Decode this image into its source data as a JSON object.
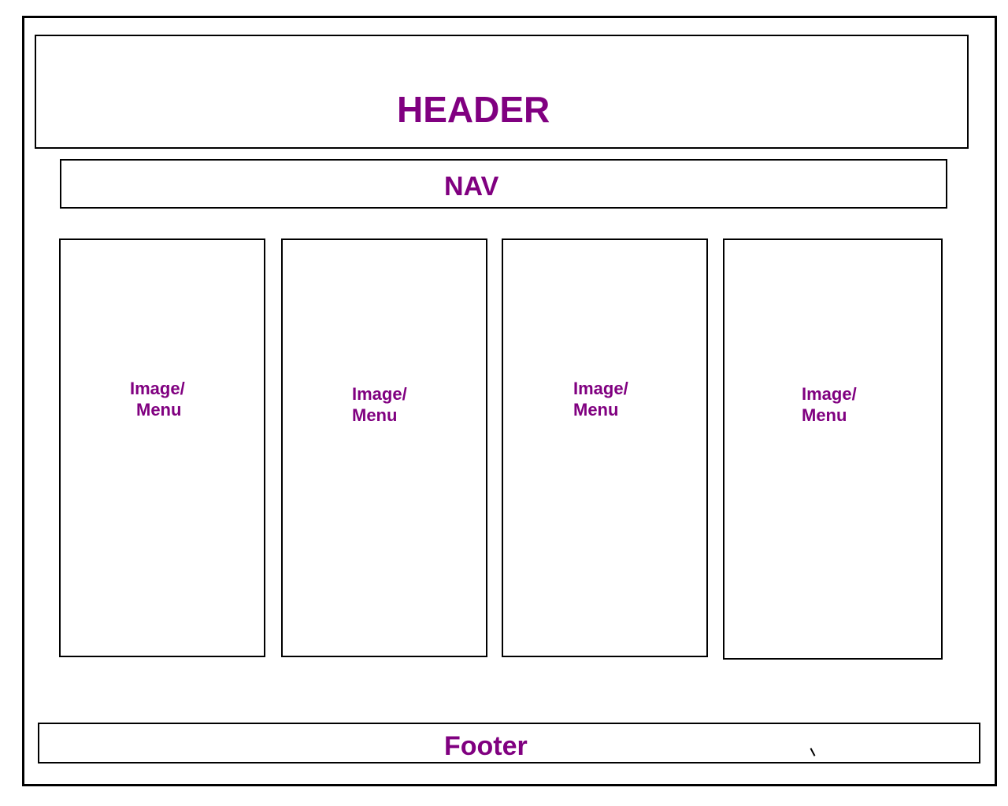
{
  "header": {
    "label": "HEADER"
  },
  "nav": {
    "label": "NAV"
  },
  "cards": [
    {
      "line1": "Image/",
      "line2": "Menu"
    },
    {
      "line1": "Image/",
      "line2": "Menu"
    },
    {
      "line1": "Image/",
      "line2": "Menu"
    },
    {
      "line1": "Image/",
      "line2": "Menu"
    }
  ],
  "footer": {
    "label": "Footer"
  },
  "colors": {
    "label": "#800080",
    "stroke": "#000000",
    "background": "#ffffff"
  }
}
